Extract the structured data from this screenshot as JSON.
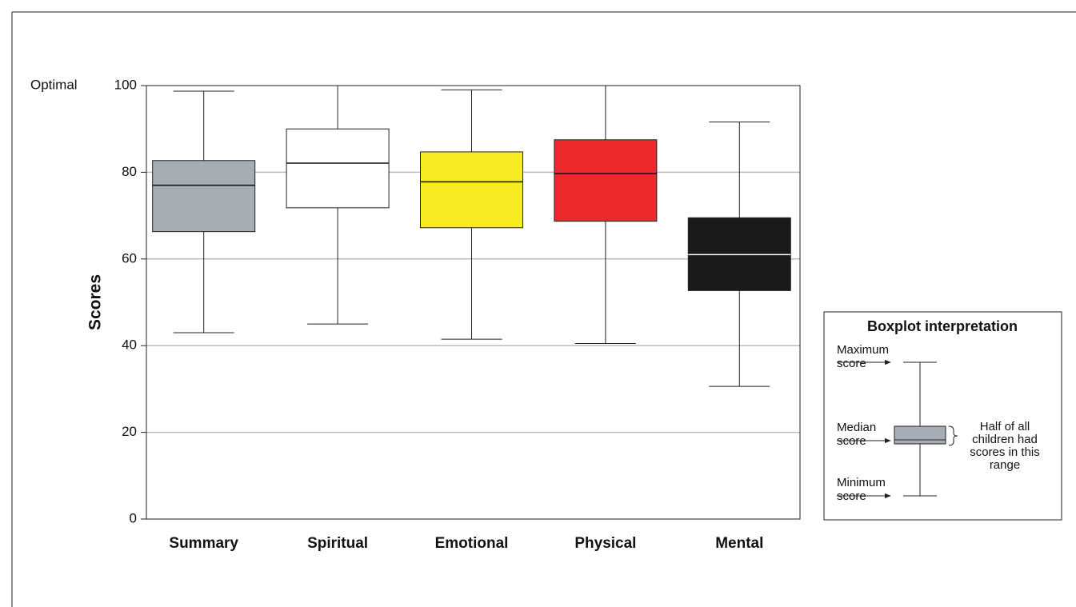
{
  "chart_data": {
    "type": "box",
    "y_label": "Scores",
    "top_label": "Optimal",
    "categories": [
      "Summary",
      "Spiritual",
      "Emotional",
      "Physical",
      "Mental"
    ],
    "boxes": [
      {
        "min": 43,
        "q1": 66.3,
        "median": 77,
        "q3": 82.7,
        "max": 98.7,
        "color": "#a7adb5",
        "median_color": "#111111"
      },
      {
        "min": 45,
        "q1": 71.8,
        "median": 82.1,
        "q3": 90,
        "max": 100,
        "color": "#ffffff",
        "median_color": "#111111"
      },
      {
        "min": 41.5,
        "q1": 67.2,
        "median": 77.8,
        "q3": 84.7,
        "max": 99,
        "color": "#f8eb22",
        "median_color": "#111111"
      },
      {
        "min": 40.5,
        "q1": 68.7,
        "median": 79.7,
        "q3": 87.5,
        "max": 100,
        "color": "#ec2a2e",
        "median_color": "#111111"
      },
      {
        "min": 30.6,
        "q1": 52.7,
        "median": 61,
        "q3": 69.5,
        "max": 91.6,
        "color": "#1a1a1a",
        "median_color": "#ffffff"
      }
    ],
    "ylim": [
      0,
      100
    ],
    "yticks": [
      0,
      20,
      40,
      60,
      80,
      100
    ],
    "grid": true,
    "legend_box": {
      "title": "Boxplot interpretation",
      "max_label": [
        "Maximum",
        "score"
      ],
      "median_label": [
        "Median",
        "score"
      ],
      "min_label": [
        "Minimum",
        "score"
      ],
      "range_label": [
        "Half of all",
        "children had",
        "scores in this",
        "range"
      ],
      "color": "#a7adb5"
    }
  }
}
